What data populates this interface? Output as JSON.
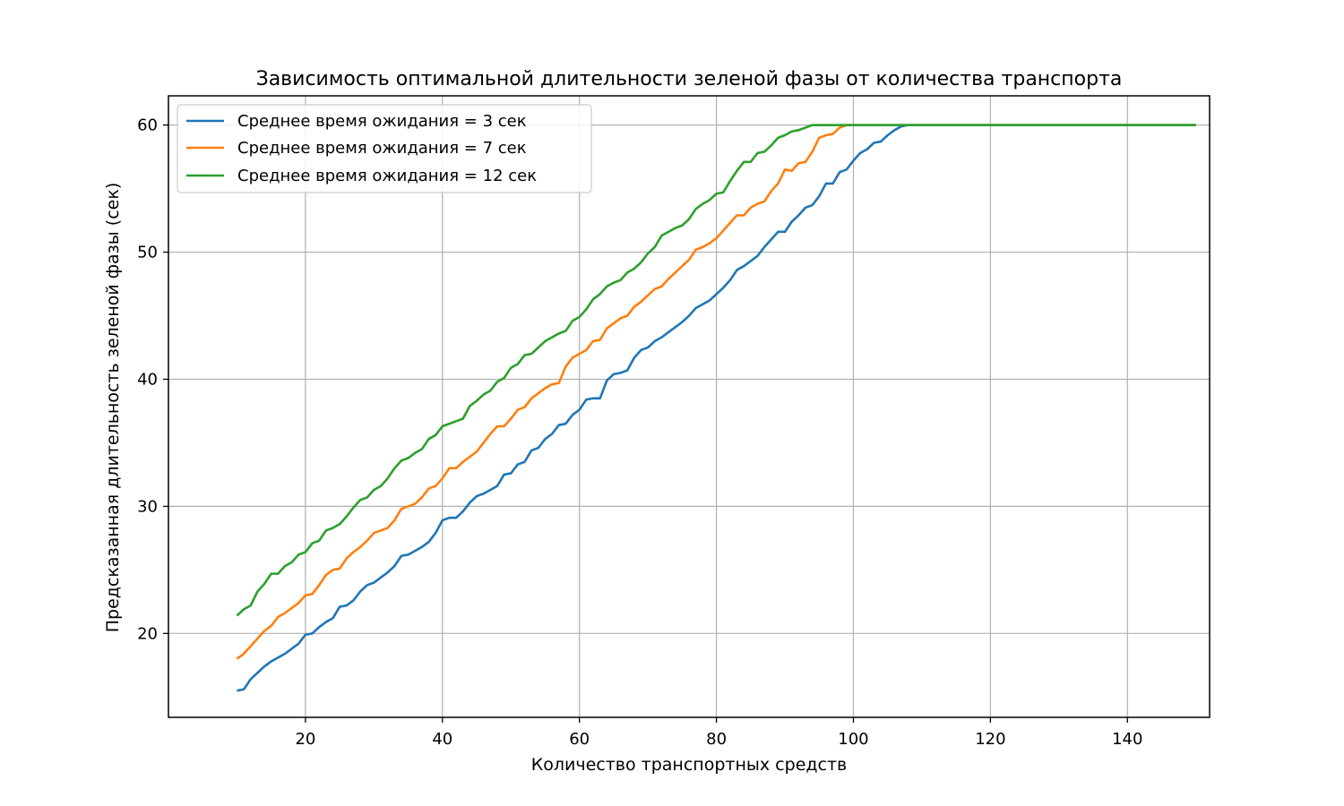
{
  "colors": {
    "background": "#ffffff",
    "grid": "#b0b0b0",
    "blue": "#1f77b4",
    "orange": "#ff7f0e",
    "green": "#2ca02c"
  },
  "chart_data": {
    "type": "line",
    "title": "Зависимость оптимальной длительности зеленой фазы от количества транспорта",
    "xlabel": "Количество транспортных средств",
    "ylabel": "Предсказанная длительность зеленой фазы (сек)",
    "xlim": [
      0,
      152
    ],
    "ylim": [
      13.4,
      62.3
    ],
    "xticks": [
      20,
      40,
      60,
      80,
      100,
      120,
      140
    ],
    "yticks": [
      20,
      30,
      40,
      50,
      60
    ],
    "xtick_labels": [
      "20",
      "40",
      "60",
      "80",
      "100",
      "120",
      "140"
    ],
    "ytick_labels": [
      "20",
      "30",
      "40",
      "50",
      "60"
    ],
    "grid": true,
    "legend_position": "upper-left",
    "x": [
      10,
      11,
      12,
      13,
      14,
      15,
      16,
      17,
      18,
      19,
      20,
      21,
      22,
      23,
      24,
      25,
      26,
      27,
      28,
      29,
      30,
      31,
      32,
      33,
      34,
      35,
      36,
      37,
      38,
      39,
      40,
      41,
      42,
      43,
      44,
      45,
      46,
      47,
      48,
      49,
      50,
      51,
      52,
      53,
      54,
      55,
      56,
      57,
      58,
      59,
      60,
      61,
      62,
      63,
      64,
      65,
      66,
      67,
      68,
      69,
      70,
      71,
      72,
      73,
      74,
      75,
      76,
      77,
      78,
      79,
      80,
      81,
      82,
      83,
      84,
      85,
      86,
      87,
      88,
      89,
      90,
      91,
      92,
      93,
      94,
      95,
      96,
      97,
      98,
      99,
      100,
      101,
      102,
      103,
      104,
      105,
      106,
      107,
      108,
      109,
      110,
      111,
      112,
      113,
      114,
      115,
      116,
      117,
      118,
      119,
      120,
      121,
      122,
      123,
      124,
      125,
      126,
      127,
      128,
      129,
      130,
      131,
      132,
      133,
      134,
      135,
      136,
      137,
      138,
      139,
      140,
      141,
      142,
      143,
      144,
      145,
      146,
      147,
      148,
      149,
      150
    ],
    "series": [
      {
        "name": "Среднее время ожидания = 3 сек",
        "color": "#1f77b4",
        "values": [
          15.5,
          15.6,
          16.4,
          16.9,
          17.4,
          17.8,
          18.1,
          18.4,
          18.8,
          19.2,
          19.9,
          20.0,
          20.5,
          20.9,
          21.2,
          22.1,
          22.2,
          22.6,
          23.3,
          23.8,
          24.0,
          24.4,
          24.8,
          25.3,
          26.1,
          26.2,
          26.5,
          26.8,
          27.2,
          27.9,
          28.9,
          29.1,
          29.1,
          29.6,
          30.3,
          30.8,
          31.0,
          31.3,
          31.6,
          32.5,
          32.6,
          33.3,
          33.5,
          34.4,
          34.6,
          35.3,
          35.7,
          36.4,
          36.5,
          37.2,
          37.6,
          38.4,
          38.5,
          38.5,
          39.9,
          40.4,
          40.5,
          40.7,
          41.7,
          42.3,
          42.5,
          43.0,
          43.3,
          43.7,
          44.1,
          44.5,
          45.0,
          45.6,
          45.9,
          46.2,
          46.7,
          47.2,
          47.8,
          48.6,
          48.9,
          49.3,
          49.7,
          50.4,
          51.0,
          51.6,
          51.6,
          52.4,
          52.9,
          53.5,
          53.7,
          54.4,
          55.4,
          55.4,
          56.3,
          56.5,
          57.2,
          57.8,
          58.1,
          58.6,
          58.7,
          59.2,
          59.6,
          59.9,
          60.0,
          60.0,
          60.0,
          60.0,
          60.0,
          60.0,
          60.0,
          60.0,
          60.0,
          60.0,
          60.0,
          60.0,
          60.0,
          60.0,
          60.0,
          60.0,
          60.0,
          60.0,
          60.0,
          60.0,
          60.0,
          60.0,
          60.0,
          60.0,
          60.0,
          60.0,
          60.0,
          60.0,
          60.0,
          60.0,
          60.0,
          60.0,
          60.0,
          60.0,
          60.0,
          60.0,
          60.0,
          60.0,
          60.0,
          60.0,
          60.0,
          60.0,
          60.0
        ]
      },
      {
        "name": "Среднее время ожидания = 7 сек",
        "color": "#ff7f0e",
        "values": [
          18.0,
          18.4,
          19.0,
          19.6,
          20.2,
          20.6,
          21.3,
          21.6,
          22.0,
          22.4,
          23.0,
          23.1,
          23.8,
          24.6,
          25.0,
          25.1,
          25.9,
          26.4,
          26.8,
          27.3,
          27.9,
          28.1,
          28.3,
          28.9,
          29.8,
          30.0,
          30.2,
          30.7,
          31.4,
          31.6,
          32.2,
          33.0,
          33.0,
          33.5,
          33.9,
          34.3,
          35.0,
          35.7,
          36.3,
          36.3,
          36.9,
          37.6,
          37.8,
          38.5,
          38.9,
          39.3,
          39.6,
          39.7,
          41.0,
          41.7,
          42.0,
          42.3,
          43.0,
          43.1,
          44.0,
          44.4,
          44.8,
          45.0,
          45.7,
          46.1,
          46.6,
          47.1,
          47.3,
          47.9,
          48.4,
          48.9,
          49.4,
          50.2,
          50.4,
          50.7,
          51.1,
          51.7,
          52.3,
          52.9,
          52.9,
          53.5,
          53.8,
          54.0,
          54.8,
          55.4,
          56.5,
          56.4,
          57.0,
          57.1,
          57.9,
          59.0,
          59.2,
          59.3,
          59.8,
          60.0,
          60.0,
          60.0,
          60.0,
          60.0,
          60.0,
          60.0,
          60.0,
          60.0,
          60.0,
          60.0,
          60.0,
          60.0,
          60.0,
          60.0,
          60.0,
          60.0,
          60.0,
          60.0,
          60.0,
          60.0,
          60.0,
          60.0,
          60.0,
          60.0,
          60.0,
          60.0,
          60.0,
          60.0,
          60.0,
          60.0,
          60.0,
          60.0,
          60.0,
          60.0,
          60.0,
          60.0,
          60.0,
          60.0,
          60.0,
          60.0,
          60.0,
          60.0,
          60.0,
          60.0,
          60.0,
          60.0,
          60.0,
          60.0,
          60.0,
          60.0,
          60.0
        ]
      },
      {
        "name": "Среднее время ожидания = 12 сек",
        "color": "#2ca02c",
        "values": [
          21.4,
          21.9,
          22.2,
          23.3,
          23.9,
          24.7,
          24.7,
          25.3,
          25.6,
          26.2,
          26.4,
          27.1,
          27.3,
          28.1,
          28.3,
          28.6,
          29.2,
          29.9,
          30.5,
          30.7,
          31.3,
          31.6,
          32.2,
          33.0,
          33.6,
          33.8,
          34.2,
          34.5,
          35.3,
          35.6,
          36.3,
          36.5,
          36.7,
          36.9,
          37.9,
          38.3,
          38.8,
          39.1,
          39.8,
          40.1,
          40.9,
          41.2,
          41.9,
          42.0,
          42.5,
          43.0,
          43.3,
          43.6,
          43.8,
          44.6,
          44.9,
          45.5,
          46.3,
          46.7,
          47.3,
          47.6,
          47.8,
          48.4,
          48.7,
          49.2,
          49.9,
          50.4,
          51.3,
          51.6,
          51.9,
          52.1,
          52.6,
          53.4,
          53.8,
          54.1,
          54.6,
          54.7,
          55.6,
          56.4,
          57.1,
          57.1,
          57.8,
          57.9,
          58.4,
          59.0,
          59.2,
          59.5,
          59.6,
          59.8,
          60.0,
          60.0,
          60.0,
          60.0,
          60.0,
          60.0,
          60.0,
          60.0,
          60.0,
          60.0,
          60.0,
          60.0,
          60.0,
          60.0,
          60.0,
          60.0,
          60.0,
          60.0,
          60.0,
          60.0,
          60.0,
          60.0,
          60.0,
          60.0,
          60.0,
          60.0,
          60.0,
          60.0,
          60.0,
          60.0,
          60.0,
          60.0,
          60.0,
          60.0,
          60.0,
          60.0,
          60.0,
          60.0,
          60.0,
          60.0,
          60.0,
          60.0,
          60.0,
          60.0,
          60.0,
          60.0,
          60.0,
          60.0,
          60.0,
          60.0,
          60.0,
          60.0,
          60.0,
          60.0,
          60.0,
          60.0,
          60.0
        ]
      }
    ]
  }
}
